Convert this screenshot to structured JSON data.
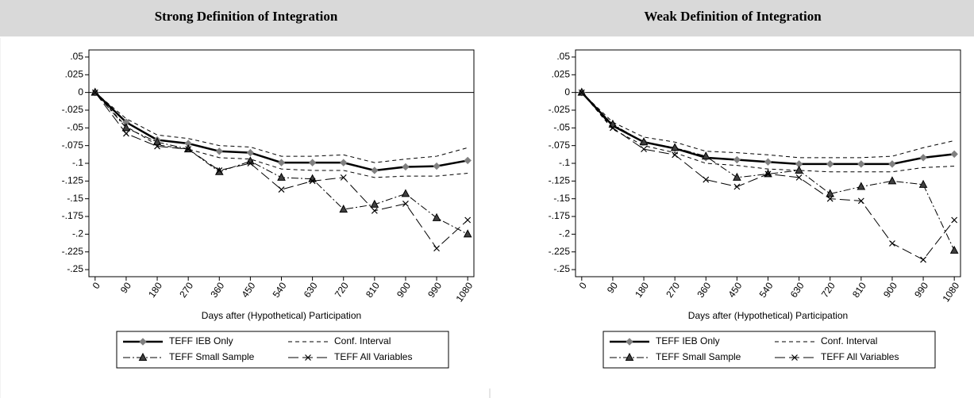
{
  "chart_data": [
    {
      "type": "line",
      "title": "Strong Definition of Integration",
      "x_label": "Days after (Hypothetical) Participation",
      "x": [
        0,
        90,
        180,
        270,
        360,
        450,
        540,
        630,
        720,
        810,
        900,
        990,
        1080
      ],
      "xlim": [
        -18,
        1098
      ],
      "xticks": [
        0,
        90,
        180,
        270,
        360,
        450,
        540,
        630,
        720,
        810,
        900,
        990,
        1080
      ],
      "ylim": [
        -0.26,
        0.06
      ],
      "yticks": [
        {
          "value": 0.05,
          "label": ".05"
        },
        {
          "value": 0.025,
          "label": ".025"
        },
        0,
        {
          "value": -0.025,
          "label": "-.025"
        },
        {
          "value": -0.05,
          "label": "-.05"
        },
        {
          "value": -0.075,
          "label": "-.075"
        },
        {
          "value": -0.1,
          "label": "-.1"
        },
        {
          "value": -0.125,
          "label": "-.125"
        },
        {
          "value": -0.15,
          "label": "-.15"
        },
        {
          "value": -0.175,
          "label": "-.175"
        },
        {
          "value": -0.2,
          "label": "-.2"
        },
        {
          "value": -0.225,
          "label": "-.225"
        },
        {
          "value": -0.25,
          "label": "-.25"
        }
      ],
      "reference_line": 0,
      "series": [
        {
          "name": "TEFF IEB Only",
          "color": "#000000",
          "style": "solid",
          "marker": "diamond",
          "values": [
            0,
            -0.042,
            -0.067,
            -0.072,
            -0.083,
            -0.085,
            -0.099,
            -0.099,
            -0.099,
            -0.11,
            -0.105,
            -0.104,
            -0.096
          ]
        },
        {
          "name": "Conf. Interval",
          "color": "#000000",
          "style": "dash",
          "upper": [
            0,
            -0.037,
            -0.06,
            -0.065,
            -0.075,
            -0.077,
            -0.09,
            -0.09,
            -0.088,
            -0.099,
            -0.094,
            -0.09,
            -0.078
          ],
          "lower": [
            0,
            -0.048,
            -0.074,
            -0.08,
            -0.092,
            -0.094,
            -0.108,
            -0.11,
            -0.11,
            -0.12,
            -0.118,
            -0.118,
            -0.114
          ]
        },
        {
          "name": "TEFF Small Sample",
          "color": "#000000",
          "style": "dashdot",
          "marker": "triangle",
          "values": [
            0,
            -0.05,
            -0.07,
            -0.08,
            -0.112,
            -0.097,
            -0.12,
            -0.122,
            -0.165,
            -0.158,
            -0.143,
            -0.177,
            -0.2
          ]
        },
        {
          "name": "TEFF All Variables",
          "color": "#000000",
          "style": "longdash",
          "marker": "x",
          "values": [
            0,
            -0.058,
            -0.076,
            -0.08,
            -0.11,
            -0.1,
            -0.137,
            -0.125,
            -0.12,
            -0.167,
            -0.157,
            -0.22,
            -0.18
          ]
        }
      ]
    },
    {
      "type": "line",
      "title": "Weak Definition of Integration",
      "x_label": "Days after (Hypothetical) Participation",
      "x": [
        0,
        90,
        180,
        270,
        360,
        450,
        540,
        630,
        720,
        810,
        900,
        990,
        1080
      ],
      "xlim": [
        -18,
        1098
      ],
      "xticks": [
        0,
        90,
        180,
        270,
        360,
        450,
        540,
        630,
        720,
        810,
        900,
        990,
        1080
      ],
      "ylim": [
        -0.26,
        0.06
      ],
      "yticks": [
        {
          "value": 0.05,
          "label": ".05"
        },
        {
          "value": 0.025,
          "label": ".025"
        },
        0,
        {
          "value": -0.025,
          "label": "-.025"
        },
        {
          "value": -0.05,
          "label": "-.05"
        },
        {
          "value": -0.075,
          "label": "-.075"
        },
        {
          "value": -0.1,
          "label": "-.1"
        },
        {
          "value": -0.125,
          "label": "-.125"
        },
        {
          "value": -0.15,
          "label": "-.15"
        },
        {
          "value": -0.175,
          "label": "-.175"
        },
        {
          "value": -0.2,
          "label": "-.2"
        },
        {
          "value": -0.225,
          "label": "-.225"
        },
        {
          "value": -0.25,
          "label": "-.25"
        }
      ],
      "reference_line": 0,
      "series": [
        {
          "name": "TEFF IEB Only",
          "color": "#000000",
          "style": "solid",
          "marker": "diamond",
          "values": [
            0,
            -0.047,
            -0.07,
            -0.079,
            -0.092,
            -0.095,
            -0.098,
            -0.101,
            -0.101,
            -0.101,
            -0.101,
            -0.092,
            -0.087
          ]
        },
        {
          "name": "Conf. Interval",
          "color": "#000000",
          "style": "dash",
          "upper": [
            0,
            -0.042,
            -0.063,
            -0.07,
            -0.083,
            -0.085,
            -0.088,
            -0.092,
            -0.092,
            -0.092,
            -0.09,
            -0.078,
            -0.068
          ],
          "lower": [
            0,
            -0.052,
            -0.075,
            -0.085,
            -0.1,
            -0.103,
            -0.108,
            -0.11,
            -0.112,
            -0.112,
            -0.112,
            -0.106,
            -0.104
          ]
        },
        {
          "name": "TEFF Small Sample",
          "color": "#000000",
          "style": "dashdot",
          "marker": "triangle",
          "values": [
            0,
            -0.045,
            -0.07,
            -0.078,
            -0.09,
            -0.12,
            -0.115,
            -0.11,
            -0.143,
            -0.133,
            -0.125,
            -0.13,
            -0.223
          ]
        },
        {
          "name": "TEFF All Variables",
          "color": "#000000",
          "style": "longdash",
          "marker": "x",
          "values": [
            0,
            -0.05,
            -0.08,
            -0.088,
            -0.123,
            -0.133,
            -0.115,
            -0.12,
            -0.15,
            -0.153,
            -0.213,
            -0.236,
            -0.18
          ]
        }
      ]
    }
  ]
}
